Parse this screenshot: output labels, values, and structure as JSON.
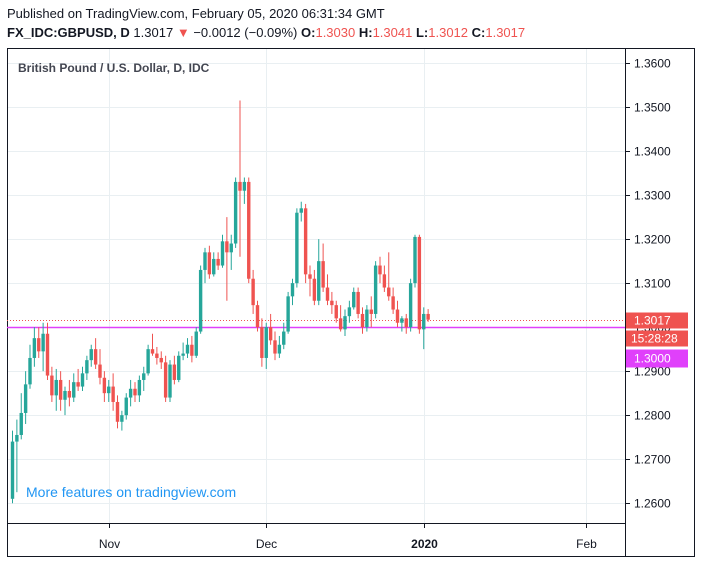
{
  "header": {
    "published": "Published on TradingView.com, February 05, 2020 06:31:34 GMT",
    "symbol": "FX_IDC:GBPUSD, D",
    "last": "1.3017",
    "change": "−0.0012 (−0.09%)",
    "o_label": "O:",
    "o_value": "1.3030",
    "h_label": "H:",
    "h_value": "1.3041",
    "l_label": "L:",
    "l_value": "1.3012",
    "c_label": "C:",
    "c_value": "1.3017"
  },
  "colors": {
    "up": "#26a69a",
    "down": "#ef5350",
    "level_line": "#e040fb",
    "grid": "#e9eff2",
    "axis": "#131722",
    "watermark": "#2196f3"
  },
  "chart_data": {
    "type": "candlestick",
    "title": "British Pound / U.S. Dollar, D, IDC",
    "watermark": "More features on tradingview.com",
    "ylim": [
      1.2555,
      1.3632
    ],
    "y_ticks": [
      "1.3600",
      "1.3500",
      "1.3400",
      "1.3300",
      "1.3200",
      "1.3100",
      "1.3000",
      "1.2900",
      "1.2800",
      "1.2700",
      "1.2600"
    ],
    "x_ticks": [
      {
        "label": "Nov",
        "index": 22,
        "bold": false
      },
      {
        "label": "Dec",
        "index": 58,
        "bold": false
      },
      {
        "label": "2020",
        "index": 94,
        "bold": true
      },
      {
        "label": "Feb",
        "index": 131,
        "bold": false
      }
    ],
    "horizontal_line": 1.3,
    "last_price_label": "1.3017",
    "countdown_label": "15:28:28",
    "level_label": "1.3000",
    "candles": [
      {
        "o": 1.261,
        "h": 1.2765,
        "l": 1.26,
        "c": 1.274
      },
      {
        "o": 1.274,
        "h": 1.279,
        "l": 1.2625,
        "c": 1.2755
      },
      {
        "o": 1.2755,
        "h": 1.285,
        "l": 1.2745,
        "c": 1.2805
      },
      {
        "o": 1.2805,
        "h": 1.29,
        "l": 1.278,
        "c": 1.287
      },
      {
        "o": 1.287,
        "h": 1.296,
        "l": 1.286,
        "c": 1.293
      },
      {
        "o": 1.293,
        "h": 1.3,
        "l": 1.291,
        "c": 1.2975
      },
      {
        "o": 1.2975,
        "h": 1.3,
        "l": 1.293,
        "c": 1.2945
      },
      {
        "o": 1.2945,
        "h": 1.301,
        "l": 1.29,
        "c": 1.2985
      },
      {
        "o": 1.2985,
        "h": 1.301,
        "l": 1.288,
        "c": 1.289
      },
      {
        "o": 1.289,
        "h": 1.291,
        "l": 1.283,
        "c": 1.2845
      },
      {
        "o": 1.2845,
        "h": 1.2905,
        "l": 1.281,
        "c": 1.288
      },
      {
        "o": 1.288,
        "h": 1.29,
        "l": 1.281,
        "c": 1.2835
      },
      {
        "o": 1.2835,
        "h": 1.2865,
        "l": 1.28,
        "c": 1.2855
      },
      {
        "o": 1.2855,
        "h": 1.288,
        "l": 1.282,
        "c": 1.284
      },
      {
        "o": 1.284,
        "h": 1.2895,
        "l": 1.283,
        "c": 1.2875
      },
      {
        "o": 1.2875,
        "h": 1.2905,
        "l": 1.2855,
        "c": 1.2865
      },
      {
        "o": 1.2865,
        "h": 1.291,
        "l": 1.2855,
        "c": 1.2895
      },
      {
        "o": 1.2895,
        "h": 1.2935,
        "l": 1.288,
        "c": 1.2925
      },
      {
        "o": 1.2925,
        "h": 1.296,
        "l": 1.291,
        "c": 1.295
      },
      {
        "o": 1.295,
        "h": 1.2975,
        "l": 1.2905,
        "c": 1.2915
      },
      {
        "o": 1.2915,
        "h": 1.295,
        "l": 1.287,
        "c": 1.2885
      },
      {
        "o": 1.2885,
        "h": 1.29,
        "l": 1.283,
        "c": 1.285
      },
      {
        "o": 1.285,
        "h": 1.288,
        "l": 1.283,
        "c": 1.2865
      },
      {
        "o": 1.2865,
        "h": 1.2895,
        "l": 1.281,
        "c": 1.283
      },
      {
        "o": 1.283,
        "h": 1.2845,
        "l": 1.277,
        "c": 1.2785
      },
      {
        "o": 1.2785,
        "h": 1.281,
        "l": 1.2765,
        "c": 1.28
      },
      {
        "o": 1.28,
        "h": 1.285,
        "l": 1.279,
        "c": 1.284
      },
      {
        "o": 1.284,
        "h": 1.288,
        "l": 1.282,
        "c": 1.286
      },
      {
        "o": 1.286,
        "h": 1.2875,
        "l": 1.283,
        "c": 1.2845
      },
      {
        "o": 1.2845,
        "h": 1.289,
        "l": 1.283,
        "c": 1.288
      },
      {
        "o": 1.288,
        "h": 1.291,
        "l": 1.2855,
        "c": 1.2895
      },
      {
        "o": 1.2895,
        "h": 1.296,
        "l": 1.289,
        "c": 1.295
      },
      {
        "o": 1.295,
        "h": 1.2985,
        "l": 1.2935,
        "c": 1.294
      },
      {
        "o": 1.294,
        "h": 1.2955,
        "l": 1.2915,
        "c": 1.293
      },
      {
        "o": 1.293,
        "h": 1.2945,
        "l": 1.2905,
        "c": 1.292
      },
      {
        "o": 1.292,
        "h": 1.2935,
        "l": 1.283,
        "c": 1.284
      },
      {
        "o": 1.284,
        "h": 1.2925,
        "l": 1.283,
        "c": 1.2915
      },
      {
        "o": 1.2915,
        "h": 1.2935,
        "l": 1.287,
        "c": 1.288
      },
      {
        "o": 1.288,
        "h": 1.2945,
        "l": 1.2875,
        "c": 1.2935
      },
      {
        "o": 1.2935,
        "h": 1.2965,
        "l": 1.2925,
        "c": 1.294
      },
      {
        "o": 1.294,
        "h": 1.2975,
        "l": 1.293,
        "c": 1.296
      },
      {
        "o": 1.296,
        "h": 1.298,
        "l": 1.292,
        "c": 1.2935
      },
      {
        "o": 1.2935,
        "h": 1.3,
        "l": 1.293,
        "c": 1.299
      },
      {
        "o": 1.299,
        "h": 1.314,
        "l": 1.2985,
        "c": 1.313
      },
      {
        "o": 1.313,
        "h": 1.318,
        "l": 1.31,
        "c": 1.317
      },
      {
        "o": 1.317,
        "h": 1.3185,
        "l": 1.311,
        "c": 1.312
      },
      {
        "o": 1.312,
        "h": 1.317,
        "l": 1.3115,
        "c": 1.3155
      },
      {
        "o": 1.3155,
        "h": 1.317,
        "l": 1.313,
        "c": 1.314
      },
      {
        "o": 1.314,
        "h": 1.321,
        "l": 1.3135,
        "c": 1.3195
      },
      {
        "o": 1.3195,
        "h": 1.325,
        "l": 1.306,
        "c": 1.317
      },
      {
        "o": 1.317,
        "h": 1.321,
        "l": 1.313,
        "c": 1.319
      },
      {
        "o": 1.319,
        "h": 1.334,
        "l": 1.318,
        "c": 1.333
      },
      {
        "o": 1.333,
        "h": 1.3515,
        "l": 1.316,
        "c": 1.331
      },
      {
        "o": 1.331,
        "h": 1.334,
        "l": 1.328,
        "c": 1.333
      },
      {
        "o": 1.333,
        "h": 1.334,
        "l": 1.31,
        "c": 1.311
      },
      {
        "o": 1.311,
        "h": 1.313,
        "l": 1.303,
        "c": 1.305
      },
      {
        "o": 1.305,
        "h": 1.306,
        "l": 1.299,
        "c": 1.3
      },
      {
        "o": 1.3,
        "h": 1.302,
        "l": 1.291,
        "c": 1.293
      },
      {
        "o": 1.293,
        "h": 1.301,
        "l": 1.2905,
        "c": 1.3
      },
      {
        "o": 1.3,
        "h": 1.303,
        "l": 1.296,
        "c": 1.297
      },
      {
        "o": 1.297,
        "h": 1.299,
        "l": 1.2925,
        "c": 1.294
      },
      {
        "o": 1.294,
        "h": 1.298,
        "l": 1.293,
        "c": 1.296
      },
      {
        "o": 1.296,
        "h": 1.301,
        "l": 1.295,
        "c": 1.299
      },
      {
        "o": 1.299,
        "h": 1.308,
        "l": 1.2985,
        "c": 1.307
      },
      {
        "o": 1.307,
        "h": 1.311,
        "l": 1.305,
        "c": 1.31
      },
      {
        "o": 1.31,
        "h": 1.327,
        "l": 1.309,
        "c": 1.326
      },
      {
        "o": 1.326,
        "h": 1.3285,
        "l": 1.324,
        "c": 1.327
      },
      {
        "o": 1.327,
        "h": 1.328,
        "l": 1.31,
        "c": 1.312
      },
      {
        "o": 1.312,
        "h": 1.314,
        "l": 1.307,
        "c": 1.311
      },
      {
        "o": 1.311,
        "h": 1.313,
        "l": 1.305,
        "c": 1.306
      },
      {
        "o": 1.306,
        "h": 1.32,
        "l": 1.305,
        "c": 1.315
      },
      {
        "o": 1.315,
        "h": 1.319,
        "l": 1.308,
        "c": 1.309
      },
      {
        "o": 1.309,
        "h": 1.312,
        "l": 1.305,
        "c": 1.306
      },
      {
        "o": 1.306,
        "h": 1.308,
        "l": 1.303,
        "c": 1.305
      },
      {
        "o": 1.305,
        "h": 1.306,
        "l": 1.301,
        "c": 1.302
      },
      {
        "o": 1.302,
        "h": 1.305,
        "l": 1.299,
        "c": 1.2995
      },
      {
        "o": 1.2995,
        "h": 1.304,
        "l": 1.298,
        "c": 1.3025
      },
      {
        "o": 1.3025,
        "h": 1.306,
        "l": 1.301,
        "c": 1.3045
      },
      {
        "o": 1.3045,
        "h": 1.309,
        "l": 1.304,
        "c": 1.308
      },
      {
        "o": 1.308,
        "h": 1.309,
        "l": 1.302,
        "c": 1.303
      },
      {
        "o": 1.303,
        "h": 1.3045,
        "l": 1.2985,
        "c": 1.3
      },
      {
        "o": 1.3,
        "h": 1.305,
        "l": 1.299,
        "c": 1.304
      },
      {
        "o": 1.304,
        "h": 1.307,
        "l": 1.3,
        "c": 1.303
      },
      {
        "o": 1.303,
        "h": 1.315,
        "l": 1.302,
        "c": 1.314
      },
      {
        "o": 1.314,
        "h": 1.316,
        "l": 1.31,
        "c": 1.312
      },
      {
        "o": 1.312,
        "h": 1.314,
        "l": 1.308,
        "c": 1.309
      },
      {
        "o": 1.309,
        "h": 1.317,
        "l": 1.306,
        "c": 1.307
      },
      {
        "o": 1.307,
        "h": 1.309,
        "l": 1.303,
        "c": 1.304
      },
      {
        "o": 1.304,
        "h": 1.306,
        "l": 1.3,
        "c": 1.301
      },
      {
        "o": 1.301,
        "h": 1.3025,
        "l": 1.299,
        "c": 1.302
      },
      {
        "o": 1.302,
        "h": 1.303,
        "l": 1.2985,
        "c": 1.3
      },
      {
        "o": 1.3,
        "h": 1.311,
        "l": 1.299,
        "c": 1.31
      },
      {
        "o": 1.31,
        "h": 1.321,
        "l": 1.309,
        "c": 1.3205
      },
      {
        "o": 1.3205,
        "h": 1.321,
        "l": 1.2985,
        "c": 1.2995
      },
      {
        "o": 1.2995,
        "h": 1.3045,
        "l": 1.295,
        "c": 1.303
      },
      {
        "o": 1.303,
        "h": 1.3041,
        "l": 1.3012,
        "c": 1.3017
      }
    ]
  }
}
